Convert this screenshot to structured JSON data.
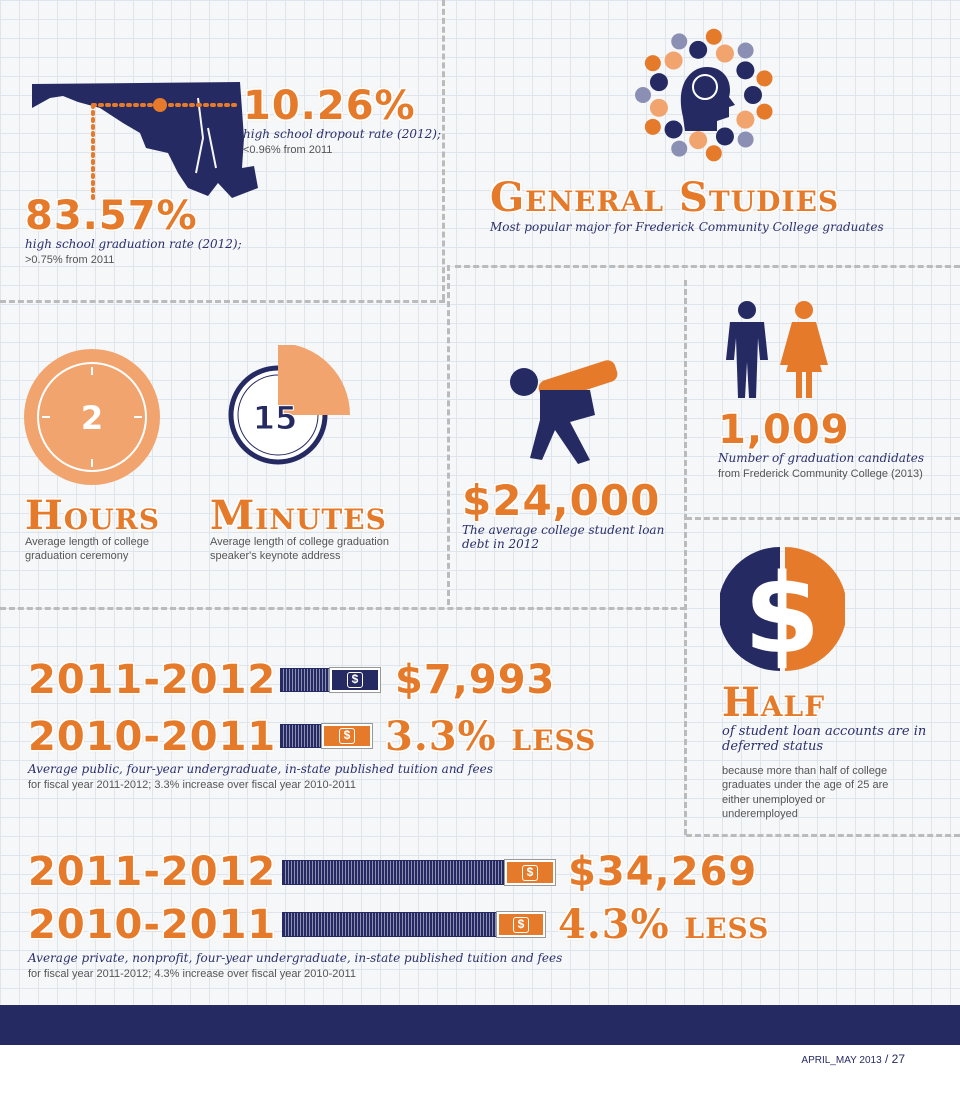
{
  "colors": {
    "orange": "#e57a2b",
    "navy": "#262a63",
    "light_orange": "#f2a46e"
  },
  "maryland": {
    "dropout_value": "10.26%",
    "dropout_caption": "high school dropout rate (2012);",
    "dropout_sub": "<0.96% from 2011",
    "graduation_value": "83.57%",
    "graduation_caption": "high school graduation rate (2012);",
    "graduation_sub": ">0.75% from 2011"
  },
  "major": {
    "title": "General Studies",
    "caption": "Most popular major for Frederick Community College graduates"
  },
  "ceremony": {
    "number": "2",
    "title": "Hours",
    "caption": "Average length of college graduation ceremony"
  },
  "keynote": {
    "number": "15",
    "title": "Minutes",
    "caption": "Average length of college graduation speaker's keynote address",
    "clock_fraction": 0.25
  },
  "debt": {
    "value": "$24,000",
    "caption": "The average college student loan debt in 2012"
  },
  "candidates": {
    "value": "1,009",
    "caption": "Number of graduation candidates",
    "sub": "from Frederick Community College (2013)"
  },
  "deferred": {
    "title": "Half",
    "caption": "of student loan accounts are in deferred status",
    "sub": "because more than half of college graduates under the age of 25 are either unemployed or underemployed"
  },
  "public_tuition": {
    "rows": [
      {
        "year": "2011-2012",
        "value": "$7,993"
      },
      {
        "year": "2010-2011",
        "value": "3.3% less"
      }
    ],
    "caption": "Average public, four-year undergraduate, in-state published tuition and fees",
    "sub": "for fiscal year 2011-2012; 3.3% increase over fiscal year 2010-2011"
  },
  "private_tuition": {
    "rows": [
      {
        "year": "2011-2012",
        "value": "$34,269"
      },
      {
        "year": "2010-2011",
        "value": "4.3% less"
      }
    ],
    "caption": "Average private, nonprofit, four-year undergraduate, in-state published tuition and fees",
    "sub": "for fiscal year 2011-2012; 4.3% increase over fiscal year 2010-2011"
  },
  "bill_symbol": "$",
  "footer": {
    "issue": "APRIL_MAY 2013",
    "page": "/ 27"
  }
}
